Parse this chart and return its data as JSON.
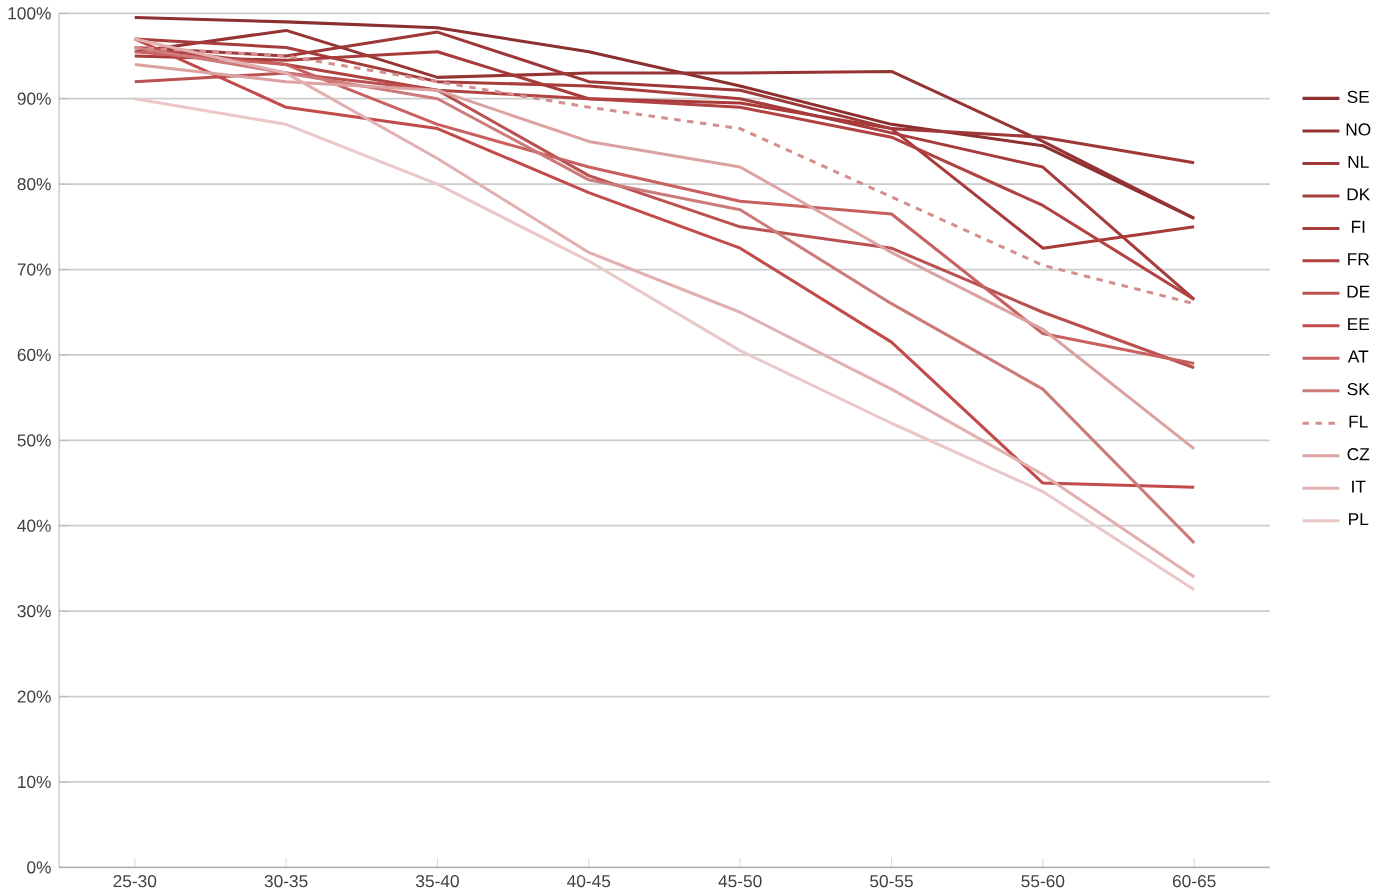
{
  "chart_data": {
    "type": "line",
    "categories": [
      "25-30",
      "30-35",
      "35-40",
      "40-45",
      "45-50",
      "50-55",
      "55-60",
      "60-65"
    ],
    "ylim": [
      0,
      100
    ],
    "yticks": [
      {
        "value": 0,
        "label": "0%"
      },
      {
        "value": 10,
        "label": "10%"
      },
      {
        "value": 20,
        "label": "20%"
      },
      {
        "value": 30,
        "label": "30%"
      },
      {
        "value": 40,
        "label": "40%"
      },
      {
        "value": 50,
        "label": "50%"
      },
      {
        "value": 60,
        "label": "60%"
      },
      {
        "value": 70,
        "label": "70%"
      },
      {
        "value": 80,
        "label": "80%"
      },
      {
        "value": 90,
        "label": "90%"
      },
      {
        "value": 100,
        "label": "100%"
      }
    ],
    "grid": "y",
    "legend": "right",
    "marker": "none",
    "series": [
      {
        "name": "SE",
        "color": "#8c2f2f",
        "values": [
          99.5,
          99,
          98.3,
          95.5,
          91.5,
          87,
          84.5,
          76
        ]
      },
      {
        "name": "NO",
        "color": "#963434",
        "values": [
          95.5,
          98,
          92.5,
          93,
          93,
          93.2,
          85,
          76
        ]
      },
      {
        "name": "NL",
        "color": "#9e3838",
        "values": [
          96,
          95,
          97.8,
          92,
          91,
          86.5,
          85.5,
          82.5
        ]
      },
      {
        "name": "DK",
        "color": "#a63c3c",
        "values": [
          97,
          96,
          92,
          91.5,
          90,
          86,
          82,
          66.5
        ]
      },
      {
        "name": "FI",
        "color": "#a83a3a",
        "values": [
          95,
          94.5,
          95.5,
          90,
          89.5,
          86.5,
          72.5,
          75
        ]
      },
      {
        "name": "FR",
        "color": "#b04242",
        "values": [
          96,
          94,
          91,
          90,
          89,
          85.5,
          77.5,
          66.5
        ]
      },
      {
        "name": "DE",
        "color": "#bb5050",
        "values": [
          92,
          93,
          91,
          81,
          75,
          72.5,
          65,
          58.5
        ]
      },
      {
        "name": "EE",
        "color": "#c24a4a",
        "values": [
          97,
          89,
          86.5,
          79,
          72.5,
          61.5,
          45,
          44.5
        ]
      },
      {
        "name": "AT",
        "color": "#c86060",
        "values": [
          95.5,
          94,
          87,
          82,
          78,
          76.5,
          62.5,
          59
        ]
      },
      {
        "name": "SK",
        "color": "#cc7a7a",
        "values": [
          96,
          93,
          90,
          80.5,
          77,
          66,
          56,
          38
        ]
      },
      {
        "name": "FL",
        "color": "#d48e8e",
        "line_style": "dashed",
        "values": [
          96,
          95,
          92,
          89,
          86.5,
          78.5,
          70.5,
          66
        ]
      },
      {
        "name": "CZ",
        "color": "#dca2a2",
        "values": [
          94,
          92,
          91,
          85,
          82,
          72,
          63,
          49
        ]
      },
      {
        "name": "IT",
        "color": "#e2b0b0",
        "values": [
          97,
          93,
          83,
          72,
          65,
          56,
          46,
          34
        ]
      },
      {
        "name": "PL",
        "color": "#ebc8c8",
        "values": [
          90,
          87,
          80,
          71,
          60.5,
          52,
          44,
          32.5
        ]
      }
    ]
  }
}
